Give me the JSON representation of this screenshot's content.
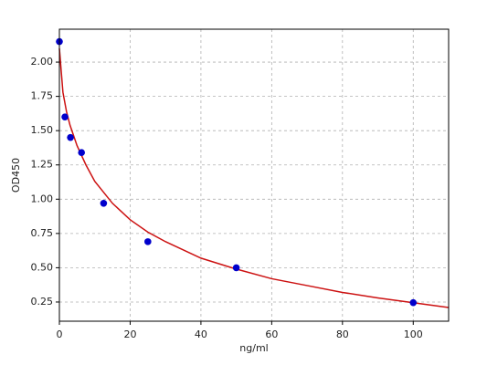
{
  "chart_data": {
    "type": "scatter",
    "xlabel": "ng/ml",
    "ylabel": "OD450",
    "xlim": [
      0,
      110
    ],
    "ylim": [
      0.11,
      2.24
    ],
    "xticks": [
      0,
      20,
      40,
      60,
      80,
      100
    ],
    "yticks": [
      0.25,
      {
        "value": 0.5,
        "label": "0.50"
      },
      0.75,
      {
        "value": 1.0,
        "label": "1.00"
      },
      1.25,
      {
        "value": 1.5,
        "label": "1.50"
      },
      1.75,
      {
        "value": 2.0,
        "label": "2.00"
      }
    ],
    "grid": true,
    "series": [
      {
        "type": "line",
        "color": "#cc1111",
        "x": [
          0,
          1,
          2,
          3,
          5,
          7.5,
          10,
          15,
          20,
          25,
          30,
          40,
          50,
          60,
          70,
          80,
          90,
          100,
          110
        ],
        "values": [
          2.1,
          1.78,
          1.64,
          1.54,
          1.39,
          1.25,
          1.13,
          0.97,
          0.85,
          0.76,
          0.69,
          0.57,
          0.49,
          0.42,
          0.37,
          0.32,
          0.28,
          0.245,
          0.21
        ]
      },
      {
        "type": "scatter",
        "color": "#0000cc",
        "x": [
          0,
          1.56,
          3.125,
          6.25,
          12.5,
          25,
          50,
          100
        ],
        "values": [
          2.15,
          1.6,
          1.45,
          1.34,
          0.97,
          0.69,
          0.5,
          0.245
        ]
      }
    ]
  }
}
